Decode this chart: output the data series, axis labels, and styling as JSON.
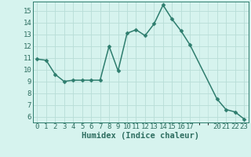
{
  "xlabel": "Humidex (Indice chaleur)",
  "x_values": [
    0,
    1,
    2,
    3,
    4,
    5,
    6,
    7,
    8,
    9,
    10,
    11,
    12,
    13,
    14,
    15,
    16,
    17,
    20,
    21,
    22,
    23
  ],
  "y_values": [
    10.9,
    10.8,
    9.6,
    9.0,
    9.1,
    9.1,
    9.1,
    9.1,
    12.0,
    9.9,
    13.1,
    13.4,
    12.9,
    13.9,
    15.5,
    14.3,
    13.3,
    12.1,
    7.5,
    6.6,
    6.4,
    5.8
  ],
  "line_color": "#2e7d6e",
  "marker": "D",
  "marker_size": 2.5,
  "bg_color": "#d6f3ee",
  "grid_color": "#b8ddd7",
  "tick_label_color": "#2e6e60",
  "axis_label_color": "#2e6e60",
  "xlim": [
    -0.5,
    23.5
  ],
  "ylim": [
    5.5,
    15.8
  ],
  "yticks": [
    6,
    7,
    8,
    9,
    10,
    11,
    12,
    13,
    14,
    15
  ],
  "xticks": [
    0,
    1,
    2,
    3,
    4,
    5,
    6,
    7,
    8,
    9,
    10,
    11,
    12,
    13,
    14,
    15,
    16,
    17,
    20,
    21,
    22,
    23
  ],
  "xtick_labels": [
    "0",
    "1",
    "2",
    "3",
    "4",
    "5",
    "6",
    "7",
    "8",
    "9",
    "10",
    "11",
    "12",
    "13",
    "14",
    "15",
    "16",
    "17",
    "20",
    "21",
    "22",
    "23"
  ],
  "font_size": 6.5,
  "xlabel_fontsize": 7.5,
  "line_width": 1.1
}
